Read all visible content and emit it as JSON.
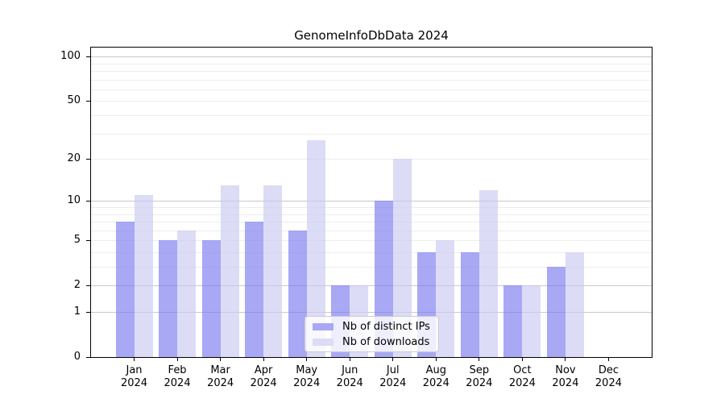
{
  "title": "GenomeInfoDbData 2024",
  "chart_data": {
    "type": "bar",
    "title": "GenomeInfoDbData 2024",
    "categories": [
      "Jan",
      "Feb",
      "Mar",
      "Apr",
      "May",
      "Jun",
      "Jul",
      "Aug",
      "Sep",
      "Oct",
      "Nov",
      "Dec"
    ],
    "category_year": "2024",
    "series": [
      {
        "name": "Nb of distinct IPs",
        "values": [
          7,
          5,
          5,
          7,
          6,
          2,
          10,
          4,
          4,
          2,
          3,
          0
        ],
        "fill": "rgba(121,121,240,0.65)",
        "legend_color": "#a8a8f5"
      },
      {
        "name": "Nb of downloads",
        "values": [
          11,
          6,
          13,
          13,
          27,
          2,
          20,
          5,
          12,
          2,
          4,
          0
        ],
        "fill": "rgba(201,201,241,0.65)",
        "legend_color": "#dcdcf6"
      }
    ],
    "y_axis": {
      "scale": "log10(1+x)",
      "tick_values": [
        100,
        50,
        20,
        10,
        5,
        2,
        1,
        0
      ]
    },
    "x_axis": {
      "label_line2": "2024"
    },
    "grid": {
      "major_values": [
        1,
        2,
        10,
        100
      ],
      "minor_values": [
        3,
        4,
        5,
        6,
        7,
        8,
        9,
        20,
        30,
        40,
        50,
        60,
        70,
        80,
        90
      ],
      "major_color": "#c9c9c9",
      "minor_color": "#ededed"
    },
    "legend": {
      "position": "bottom-center"
    },
    "colors": {
      "background": "#ffffff",
      "axis": "#000000",
      "text": "#000000"
    }
  }
}
